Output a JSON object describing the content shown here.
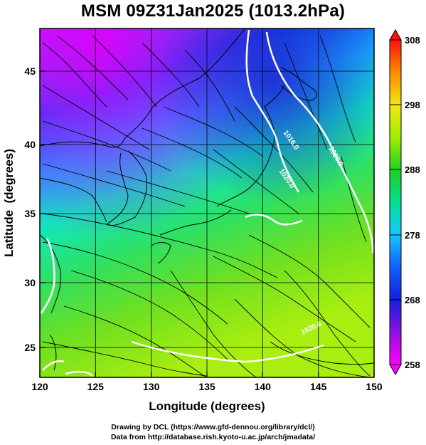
{
  "title": "MSM 09Z31Jan2025 (1013.2hPa)",
  "chart_data": {
    "type": "map",
    "xlabel": "Longitude (degrees)",
    "ylabel": "Latitude  (degrees)",
    "xlim": [
      120,
      150
    ],
    "ylim": [
      22.4,
      47.6
    ],
    "x_ticks": [
      120,
      125,
      130,
      135,
      140,
      145,
      150
    ],
    "y_ticks": [
      25,
      30,
      35,
      40,
      45
    ],
    "colorbar": {
      "min": 258,
      "max": 308,
      "tick_values": [
        258,
        268,
        278,
        288,
        298,
        308
      ],
      "tick_labels": [
        "258",
        "268",
        "278",
        "288",
        "298",
        "308"
      ],
      "colors": [
        "#ff00ff",
        "#7a00d0",
        "#1030e0",
        "#14b4ff",
        "#00e0a0",
        "#20d020",
        "#b0f000",
        "#f0e010",
        "#ff8000",
        "#ff1a1a"
      ]
    },
    "contour_labels": [
      "1016.0",
      "1020.0",
      "1020.0",
      "1020.0"
    ],
    "colors": {
      "land_line": "#000000",
      "contour": "#ffffff",
      "streamline": "#000000"
    }
  },
  "credits": {
    "line1": "Drawing by DCL (https://www.gfd-dennou.org/library/dcl/)",
    "line2": "Data from http://database.rish.kyoto-u.ac.jp/arch/jmadata/"
  }
}
